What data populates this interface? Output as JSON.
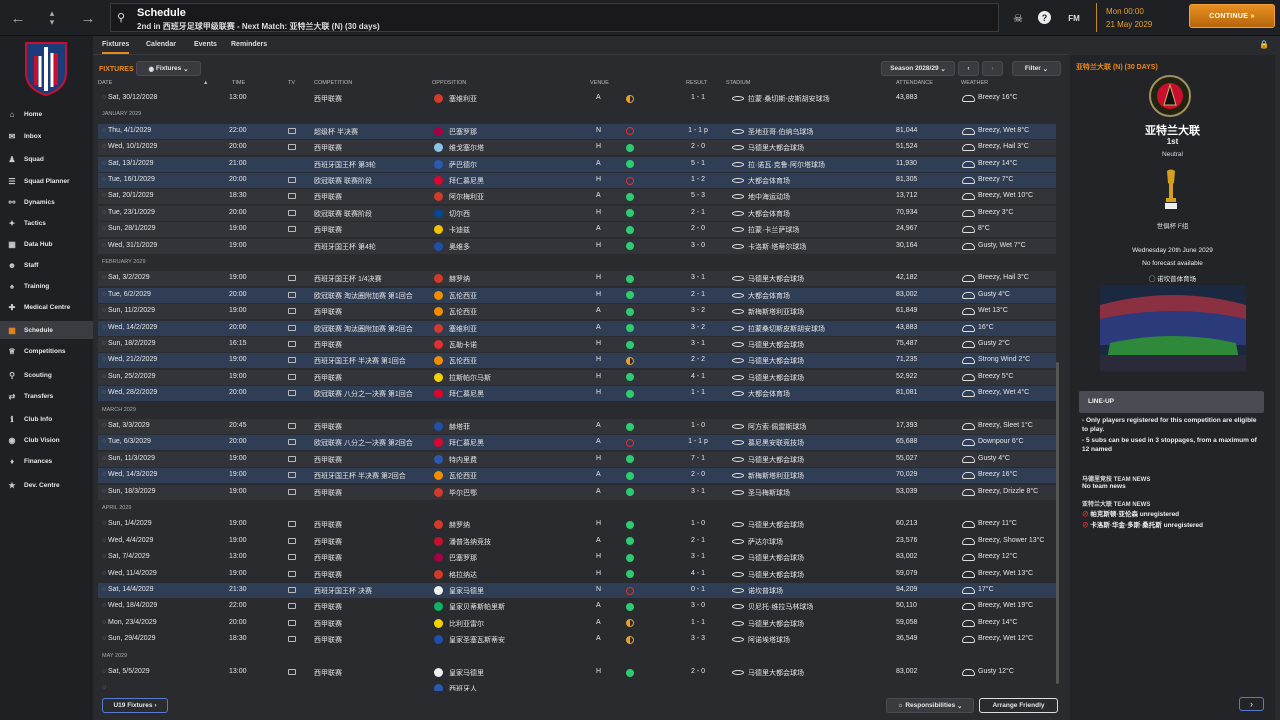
{
  "topbar": {
    "title": "Schedule",
    "subtitle": "2nd in 西班牙足球甲级联赛 - Next Match: 亚特兰大联 (N) (30 days)",
    "fm_label": "FM",
    "date_time": "Mon 00:00",
    "date": "21 May 2029",
    "continue_label": "CONTINUE"
  },
  "sidebar": {
    "items": [
      {
        "label": "Home",
        "icon": "home-icon"
      },
      {
        "label": "Inbox",
        "icon": "inbox-icon"
      },
      {
        "label": "Squad",
        "icon": "squad-icon"
      },
      {
        "label": "Squad Planner",
        "icon": "planner-icon"
      },
      {
        "label": "Dynamics",
        "icon": "dynamics-icon"
      },
      {
        "label": "Tactics",
        "icon": "tactics-icon"
      },
      {
        "label": "Data Hub",
        "icon": "data-hub-icon"
      },
      {
        "label": "Staff",
        "icon": "staff-icon"
      },
      {
        "label": "Training",
        "icon": "training-icon"
      },
      {
        "label": "Medical Centre",
        "icon": "medical-icon"
      },
      {
        "label": "Schedule",
        "icon": "schedule-icon",
        "active": true
      },
      {
        "label": "Competitions",
        "icon": "trophy-icon"
      },
      {
        "label": "Scouting",
        "icon": "scouting-icon"
      },
      {
        "label": "Transfers",
        "icon": "transfers-icon"
      },
      {
        "label": "Club Info",
        "icon": "club-info-icon"
      },
      {
        "label": "Club Vision",
        "icon": "club-vision-icon"
      },
      {
        "label": "Finances",
        "icon": "finances-icon"
      },
      {
        "label": "Dev. Centre",
        "icon": "dev-centre-icon"
      }
    ]
  },
  "tabs": [
    "Fixtures",
    "Calendar",
    "Events",
    "Reminders"
  ],
  "fixtures_label": "FIXTURES",
  "view_dropdown": "Fixtures",
  "season_dropdown": "Season 2028/29",
  "filter_label": "Filter",
  "columns": {
    "date": "DATE",
    "time": "TIME",
    "tv": "TV",
    "competition": "COMPETITION",
    "opposition": "OPPOSITION",
    "venue": "VENUE",
    "result": "RESULT",
    "stadium": "STADIUM",
    "attendance": "ATTENDANCE",
    "weather": "WEATHER"
  },
  "rows": [
    {
      "date": "Sat, 30/12/2028",
      "time": "13:00",
      "tv": false,
      "comp": "西甲联赛",
      "opp": "塞维利亚",
      "venue": "A",
      "res": "draw",
      "score": "1 - 1",
      "stadium": "拉蒙·桑切斯-皮斯胡安球场",
      "att": "43,883",
      "wx": "Breezy 16°C",
      "badge": "#d33a2a",
      "style": ""
    },
    {
      "month": "JANUARY 2029"
    },
    {
      "date": "Thu, 4/1/2029",
      "time": "22:00",
      "tv": true,
      "comp": "超级杯 半决赛",
      "opp": "巴塞罗那",
      "venue": "N",
      "res": "loss",
      "score": "1 - 1 p",
      "stadium": "圣地亚哥·伯纳乌球场",
      "att": "81,044",
      "wx": "Breezy, Wet 8°C",
      "badge": "#a50044",
      "style": "hl"
    },
    {
      "date": "Wed, 10/1/2029",
      "time": "20:00",
      "tv": true,
      "comp": "西甲联赛",
      "opp": "维戈塞尔塔",
      "venue": "H",
      "res": "win",
      "score": "2 - 0",
      "stadium": "马德里大都会球场",
      "att": "51,524",
      "wx": "Breezy, Hail 3°C",
      "badge": "#8ac4e8",
      "style": "alt"
    },
    {
      "date": "Sat, 13/1/2029",
      "time": "21:00",
      "tv": false,
      "comp": "西班牙国王杯 第3轮",
      "opp": "萨巴德尔",
      "venue": "A",
      "res": "win",
      "score": "5 - 1",
      "stadium": "拉·诺瓦·克鲁·阿尔塔球场",
      "att": "11,930",
      "wx": "Breezy 14°C",
      "badge": "#2a5ab0",
      "style": "hl"
    },
    {
      "date": "Tue, 16/1/2029",
      "time": "20:00",
      "tv": true,
      "comp": "欧冠联赛 联赛阶段",
      "opp": "拜仁慕尼黑",
      "venue": "H",
      "res": "loss",
      "score": "1 - 2",
      "stadium": "大都会体育场",
      "att": "81,305",
      "wx": "Breezy 7°C",
      "badge": "#dc052d",
      "style": "hl"
    },
    {
      "date": "Sat, 20/1/2029",
      "time": "18:30",
      "tv": true,
      "comp": "西甲联赛",
      "opp": "阿尔梅利亚",
      "venue": "A",
      "res": "win",
      "score": "5 - 3",
      "stadium": "地中海运动场",
      "att": "13,712",
      "wx": "Breezy, Wet 10°C",
      "badge": "#d33a2a",
      "style": "alt"
    },
    {
      "date": "Tue, 23/1/2029",
      "time": "20:00",
      "tv": true,
      "comp": "欧冠联赛 联赛阶段",
      "opp": "切尔西",
      "venue": "H",
      "res": "win",
      "score": "2 - 1",
      "stadium": "大都会体育场",
      "att": "70,934",
      "wx": "Breezy 3°C",
      "badge": "#034694",
      "style": "alt"
    },
    {
      "date": "Sun, 28/1/2029",
      "time": "19:00",
      "tv": true,
      "comp": "西甲联赛",
      "opp": "卡迪兹",
      "venue": "A",
      "res": "win",
      "score": "2 - 0",
      "stadium": "拉蒙·卡兰萨球场",
      "att": "24,967",
      "wx": "8°C",
      "badge": "#f2c200",
      "style": "alt"
    },
    {
      "date": "Wed, 31/1/2029",
      "time": "19:00",
      "tv": false,
      "comp": "西班牙国王杯 第4轮",
      "opp": "奥维多",
      "venue": "H",
      "res": "win",
      "score": "3 - 0",
      "stadium": "卡洛斯·塔蒂尔球场",
      "att": "30,164",
      "wx": "Gusty, Wet 7°C",
      "badge": "#1f4fa8",
      "style": "alt"
    },
    {
      "month": "FEBRUARY 2029"
    },
    {
      "date": "Sat, 3/2/2029",
      "time": "19:00",
      "tv": true,
      "comp": "西班牙国王杯 1/4决赛",
      "opp": "赫罗纳",
      "venue": "H",
      "res": "win",
      "score": "3 - 1",
      "stadium": "马德里大都会球场",
      "att": "42,182",
      "wx": "Breezy, Hail 3°C",
      "badge": "#d33a2a",
      "style": "alt"
    },
    {
      "date": "Tue, 6/2/2029",
      "time": "20:00",
      "tv": true,
      "comp": "欧冠联赛 淘汰圈附加赛 第1回合",
      "opp": "瓦伦西亚",
      "venue": "H",
      "res": "win",
      "score": "2 - 1",
      "stadium": "大都会体育场",
      "att": "83,002",
      "wx": "Gusty 4°C",
      "badge": "#f28c00",
      "style": "hl"
    },
    {
      "date": "Sun, 11/2/2029",
      "time": "19:00",
      "tv": true,
      "comp": "西甲联赛",
      "opp": "瓦伦西亚",
      "venue": "A",
      "res": "win",
      "score": "3 - 2",
      "stadium": "新梅斯塔利亚球场",
      "att": "61,849",
      "wx": "Wet 13°C",
      "badge": "#f28c00",
      "style": "alt"
    },
    {
      "date": "Wed, 14/2/2029",
      "time": "20:00",
      "tv": true,
      "comp": "欧冠联赛 淘汰圈附加赛 第2回合",
      "opp": "塞维利亚",
      "venue": "A",
      "res": "win",
      "score": "3 - 2",
      "stadium": "拉蒙桑切斯皮斯胡安球场",
      "att": "43,883",
      "wx": "16°C",
      "badge": "#d33a2a",
      "style": "hl"
    },
    {
      "date": "Sun, 18/2/2029",
      "time": "16:15",
      "tv": true,
      "comp": "西甲联赛",
      "opp": "瓦勒卡诺",
      "venue": "H",
      "res": "win",
      "score": "3 - 1",
      "stadium": "马德里大都会球场",
      "att": "75,487",
      "wx": "Gusty 2°C",
      "badge": "#e03030",
      "style": "alt"
    },
    {
      "date": "Wed, 21/2/2029",
      "time": "19:00",
      "tv": true,
      "comp": "西班牙国王杯 半决赛 第1回合",
      "opp": "瓦伦西亚",
      "venue": "H",
      "res": "draw",
      "score": "2 - 2",
      "stadium": "马德里大都会球场",
      "att": "71,235",
      "wx": "Strong Wind 2°C",
      "badge": "#f28c00",
      "style": "hl"
    },
    {
      "date": "Sun, 25/2/2029",
      "time": "19:00",
      "tv": true,
      "comp": "西甲联赛",
      "opp": "拉斯帕尔马斯",
      "venue": "H",
      "res": "win",
      "score": "4 - 1",
      "stadium": "马德里大都会球场",
      "att": "52,922",
      "wx": "Breezy 5°C",
      "badge": "#f2d200",
      "style": "alt"
    },
    {
      "date": "Wed, 28/2/2029",
      "time": "20:00",
      "tv": true,
      "comp": "欧冠联赛 八分之一决赛 第1回合",
      "opp": "拜仁慕尼黑",
      "venue": "H",
      "res": "win",
      "score": "1 - 1",
      "stadium": "大都会体育场",
      "att": "81,081",
      "wx": "Breezy, Wet 4°C",
      "badge": "#dc052d",
      "style": "hl"
    },
    {
      "month": "MARCH 2029"
    },
    {
      "date": "Sat, 3/3/2029",
      "time": "20:45",
      "tv": true,
      "comp": "西甲联赛",
      "opp": "赫塔菲",
      "venue": "A",
      "res": "win",
      "score": "1 - 0",
      "stadium": "阿方索·佩雷斯球场",
      "att": "17,393",
      "wx": "Breezy, Sleet 1°C",
      "badge": "#1f4fa8",
      "style": "alt"
    },
    {
      "date": "Tue, 6/3/2029",
      "time": "20:00",
      "tv": true,
      "comp": "欧冠联赛 八分之一决赛 第2回合",
      "opp": "拜仁慕尼黑",
      "venue": "A",
      "res": "loss",
      "score": "1 - 1 p",
      "stadium": "慕尼黑安联竞技场",
      "att": "65,688",
      "wx": "Downpour 6°C",
      "badge": "#dc052d",
      "style": "hl"
    },
    {
      "date": "Sun, 11/3/2029",
      "time": "19:00",
      "tv": true,
      "comp": "西甲联赛",
      "opp": "特内里费",
      "venue": "H",
      "res": "win",
      "score": "7 - 1",
      "stadium": "马德里大都会球场",
      "att": "55,027",
      "wx": "Gusty 4°C",
      "badge": "#2a5ab0",
      "style": "alt"
    },
    {
      "date": "Wed, 14/3/2029",
      "time": "19:00",
      "tv": true,
      "comp": "西班牙国王杯 半决赛 第2回合",
      "opp": "瓦伦西亚",
      "venue": "A",
      "res": "win",
      "score": "2 - 0",
      "stadium": "新梅斯塔利亚球场",
      "att": "70,029",
      "wx": "Breezy 16°C",
      "badge": "#f28c00",
      "style": "hl"
    },
    {
      "date": "Sun, 18/3/2029",
      "time": "19:00",
      "tv": true,
      "comp": "西甲联赛",
      "opp": "毕尔巴鄂",
      "venue": "A",
      "res": "win",
      "score": "3 - 1",
      "stadium": "圣马梅斯球场",
      "att": "53,039",
      "wx": "Breezy, Drizzle 8°C",
      "badge": "#d33a2a",
      "style": "alt"
    },
    {
      "month": "APRIL 2029"
    },
    {
      "date": "Sun, 1/4/2029",
      "time": "19:00",
      "tv": true,
      "comp": "西甲联赛",
      "opp": "赫罗纳",
      "venue": "H",
      "res": "win",
      "score": "1 - 0",
      "stadium": "马德里大都会球场",
      "att": "60,213",
      "wx": "Breezy 11°C",
      "badge": "#d33a2a",
      "style": ""
    },
    {
      "date": "Wed, 4/4/2029",
      "time": "19:00",
      "tv": true,
      "comp": "西甲联赛",
      "opp": "潘普洛纳竞技",
      "venue": "A",
      "res": "win",
      "score": "2 - 1",
      "stadium": "萨达尔球场",
      "att": "23,576",
      "wx": "Breezy, Shower 13°C",
      "badge": "#c8102e",
      "style": ""
    },
    {
      "date": "Sat, 7/4/2029",
      "time": "13:00",
      "tv": true,
      "comp": "西甲联赛",
      "opp": "巴塞罗那",
      "venue": "H",
      "res": "win",
      "score": "3 - 1",
      "stadium": "马德里大都会球场",
      "att": "83,002",
      "wx": "Breezy 12°C",
      "badge": "#a50044",
      "style": ""
    },
    {
      "date": "Wed, 11/4/2029",
      "time": "19:00",
      "tv": true,
      "comp": "西甲联赛",
      "opp": "格拉纳达",
      "venue": "H",
      "res": "win",
      "score": "4 - 1",
      "stadium": "马德里大都会球场",
      "att": "59,079",
      "wx": "Breezy, Wet 13°C",
      "badge": "#d33a2a",
      "style": ""
    },
    {
      "date": "Sat, 14/4/2029",
      "time": "21:30",
      "tv": true,
      "comp": "西班牙国王杯 决赛",
      "opp": "皇家马德里",
      "venue": "N",
      "res": "loss",
      "score": "0 - 1",
      "stadium": "诺坎普球场",
      "att": "94,209",
      "wx": "17°C",
      "badge": "#f0f0f0",
      "style": "hl"
    },
    {
      "date": "Wed, 18/4/2029",
      "time": "22:00",
      "tv": true,
      "comp": "西甲联赛",
      "opp": "皇家贝蒂斯帕里斯",
      "venue": "A",
      "res": "win",
      "score": "3 - 0",
      "stadium": "贝尼托·维拉马林球场",
      "att": "50,110",
      "wx": "Breezy, Wet 19°C",
      "badge": "#0bb363",
      "style": ""
    },
    {
      "date": "Mon, 23/4/2029",
      "time": "20:00",
      "tv": true,
      "comp": "西甲联赛",
      "opp": "比利亚雷尔",
      "venue": "A",
      "res": "draw",
      "score": "1 - 1",
      "stadium": "马德里大都会球场",
      "att": "59,058",
      "wx": "Breezy 14°C",
      "badge": "#f2d200",
      "style": ""
    },
    {
      "date": "Sun, 29/4/2029",
      "time": "18:30",
      "tv": true,
      "comp": "西甲联赛",
      "opp": "皇家圣塞瓦斯蒂安",
      "venue": "A",
      "res": "draw",
      "score": "3 - 3",
      "stadium": "阿诺埃塔球场",
      "att": "36,549",
      "wx": "Breezy, Wet 12°C",
      "badge": "#1f4fa8",
      "style": ""
    },
    {
      "month": "MAY 2029"
    },
    {
      "date": "Sat, 5/5/2029",
      "time": "13:00",
      "tv": true,
      "comp": "西甲联赛",
      "opp": "皇家马德里",
      "venue": "H",
      "res": "win",
      "score": "2 - 0",
      "stadium": "马德里大都会球场",
      "att": "83,002",
      "wx": "Gusty 12°C",
      "badge": "#f0f0f0",
      "style": ""
    },
    {
      "date": "",
      "time": "",
      "tv": false,
      "comp": "",
      "opp": "西班牙人",
      "venue": "",
      "res": "",
      "score": "",
      "stadium": "",
      "att": "",
      "wx": "",
      "badge": "#2a5ab0",
      "style": ""
    }
  ],
  "bottom": {
    "u19_label": "U19 Fixtures",
    "responsibilities_label": "Responsibilities",
    "arrange_label": "Arrange Friendly"
  },
  "panel": {
    "header": "亚特兰大联 (N) (30 DAYS)",
    "team": "亚特兰大联",
    "position": "1st",
    "venue": "Neutral",
    "competition": "世俱杯 F组",
    "match_date": "Wednesday 20th June 2029",
    "forecast": "No forecast available",
    "stadium": "诺坎普体育场",
    "lineup_title": "LINE-UP",
    "lineup_rule1": "- Only players registered for this competition are eligible to play.",
    "lineup_rule2": "- 5 subs can be used in 3 stoppages, from a maximum of 12 named",
    "news1_title": "马德里竞技 TEAM NEWS",
    "news1_text": "No team news",
    "news2_title": "亚特兰大联 TEAM NEWS",
    "news2_items": [
      "帕克斯顿·亚伦森 unregistered",
      "卡洛斯·华金·多斯·桑托斯 unregistered"
    ]
  },
  "colors": {
    "accent": "#e88a20",
    "win": "#2ecc71",
    "loss": "#e03030",
    "highlight_row": "#2f3e55"
  }
}
